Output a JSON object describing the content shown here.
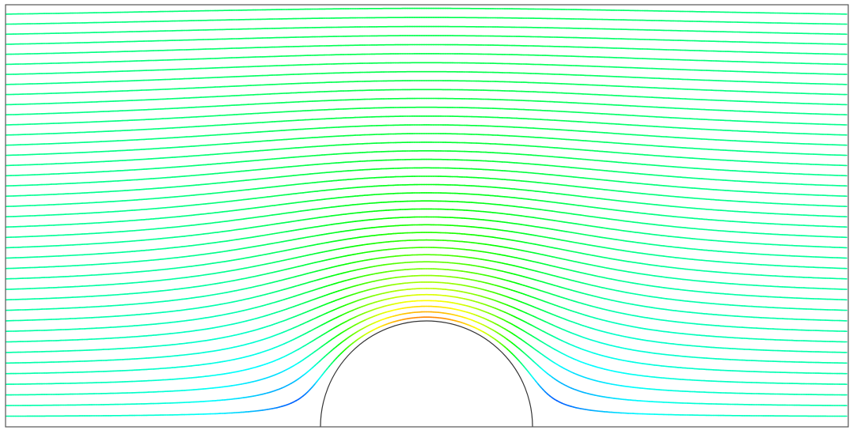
{
  "figure": {
    "kind": "potential-flow-streamlines",
    "obstacle": "semicircular-bump",
    "streamline_count": 40,
    "colormap": [
      "#0000ff",
      "#00ffff",
      "#00ff00",
      "#ffff00",
      "#ff0000"
    ],
    "frame_color": "#555555",
    "obstacle_outline_color": "#333333",
    "background": "#ffffff",
    "show_frame": true
  }
}
